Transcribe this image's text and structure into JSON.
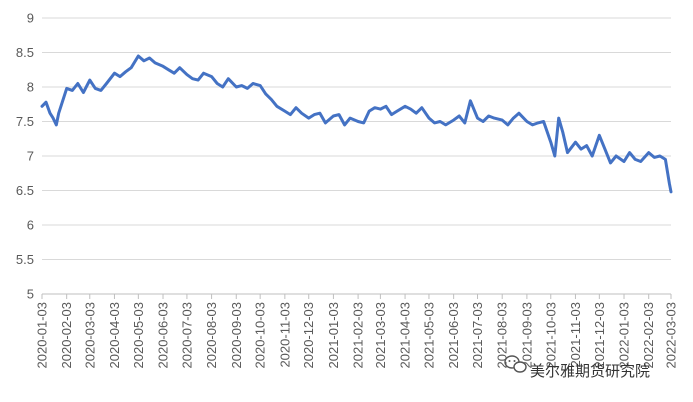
{
  "chart_data": {
    "type": "line",
    "title": "",
    "xlabel": "",
    "ylabel": "",
    "ylim": [
      5,
      9
    ],
    "y_ticks": [
      "5",
      "5.5",
      "6",
      "6.5",
      "7",
      "7.5",
      "8",
      "8.5",
      "9"
    ],
    "grid": "horizontal",
    "legend": "none",
    "x_ticks": [
      "2020-01-03",
      "2020-02-03",
      "2020-03-03",
      "2020-04-03",
      "2020-05-03",
      "2020-06-03",
      "2020-07-03",
      "2020-08-03",
      "2020-09-03",
      "2020-10-03",
      "2020-11-03",
      "2020-12-03",
      "2021-01-03",
      "2021-02-03",
      "2021-03-03",
      "2021-04-03",
      "2021-05-03",
      "2021-06-03",
      "2021-07-03",
      "2021-08-03",
      "2021-09-03",
      "2021-10-03",
      "2021-11-03",
      "2021-12-03",
      "2022-01-03",
      "2022-02-03",
      "2022-03-03"
    ],
    "series": [
      {
        "color": "#4472c4",
        "x": [
          "2020-01-03",
          "2020-01-08",
          "2020-01-13",
          "2020-01-17",
          "2020-01-21",
          "2020-01-24",
          "2020-02-03",
          "2020-02-10",
          "2020-02-17",
          "2020-02-24",
          "2020-03-03",
          "2020-03-10",
          "2020-03-17",
          "2020-03-24",
          "2020-04-03",
          "2020-04-10",
          "2020-04-17",
          "2020-04-24",
          "2020-05-03",
          "2020-05-10",
          "2020-05-17",
          "2020-05-24",
          "2020-06-03",
          "2020-06-10",
          "2020-06-17",
          "2020-06-24",
          "2020-07-03",
          "2020-07-10",
          "2020-07-17",
          "2020-07-24",
          "2020-08-03",
          "2020-08-10",
          "2020-08-17",
          "2020-08-24",
          "2020-09-03",
          "2020-09-10",
          "2020-09-17",
          "2020-09-24",
          "2020-10-03",
          "2020-10-10",
          "2020-10-17",
          "2020-10-24",
          "2020-11-03",
          "2020-11-10",
          "2020-11-17",
          "2020-11-24",
          "2020-12-03",
          "2020-12-10",
          "2020-12-17",
          "2020-12-24",
          "2021-01-03",
          "2021-01-10",
          "2021-01-17",
          "2021-01-24",
          "2021-02-03",
          "2021-02-10",
          "2021-02-17",
          "2021-02-24",
          "2021-03-03",
          "2021-03-10",
          "2021-03-17",
          "2021-03-24",
          "2021-04-03",
          "2021-04-10",
          "2021-04-17",
          "2021-04-24",
          "2021-05-03",
          "2021-05-10",
          "2021-05-17",
          "2021-05-24",
          "2021-06-03",
          "2021-06-10",
          "2021-06-17",
          "2021-06-24",
          "2021-07-03",
          "2021-07-10",
          "2021-07-17",
          "2021-07-24",
          "2021-08-03",
          "2021-08-10",
          "2021-08-17",
          "2021-08-24",
          "2021-09-03",
          "2021-09-10",
          "2021-09-17",
          "2021-09-24",
          "2021-10-03",
          "2021-10-08",
          "2021-10-13",
          "2021-10-18",
          "2021-10-24",
          "2021-11-03",
          "2021-11-10",
          "2021-11-17",
          "2021-11-24",
          "2021-12-03",
          "2021-12-10",
          "2021-12-17",
          "2021-12-24",
          "2022-01-03",
          "2022-01-10",
          "2022-01-17",
          "2022-01-24",
          "2022-02-03",
          "2022-02-10",
          "2022-02-17",
          "2022-02-24",
          "2022-03-01",
          "2022-03-03"
        ],
        "values": [
          7.72,
          7.78,
          7.62,
          7.55,
          7.45,
          7.62,
          7.98,
          7.95,
          8.05,
          7.92,
          8.1,
          7.98,
          7.95,
          8.05,
          8.2,
          8.15,
          8.22,
          8.28,
          8.45,
          8.38,
          8.42,
          8.35,
          8.3,
          8.25,
          8.2,
          8.28,
          8.18,
          8.12,
          8.1,
          8.2,
          8.15,
          8.05,
          8.0,
          8.12,
          8.0,
          8.02,
          7.98,
          8.05,
          8.02,
          7.9,
          7.82,
          7.72,
          7.65,
          7.6,
          7.7,
          7.62,
          7.55,
          7.6,
          7.62,
          7.48,
          7.58,
          7.6,
          7.45,
          7.55,
          7.5,
          7.48,
          7.65,
          7.7,
          7.68,
          7.72,
          7.6,
          7.65,
          7.72,
          7.68,
          7.62,
          7.7,
          7.55,
          7.48,
          7.5,
          7.45,
          7.52,
          7.58,
          7.48,
          7.8,
          7.55,
          7.5,
          7.58,
          7.55,
          7.52,
          7.45,
          7.55,
          7.62,
          7.5,
          7.45,
          7.48,
          7.5,
          7.2,
          7.0,
          7.55,
          7.35,
          7.05,
          7.2,
          7.1,
          7.15,
          7.0,
          7.3,
          7.1,
          6.9,
          7.0,
          6.92,
          7.05,
          6.95,
          6.92,
          7.05,
          6.98,
          7.0,
          6.95,
          6.6,
          6.48
        ]
      }
    ]
  },
  "watermark": {
    "text": "美尔雅期货研究院"
  }
}
